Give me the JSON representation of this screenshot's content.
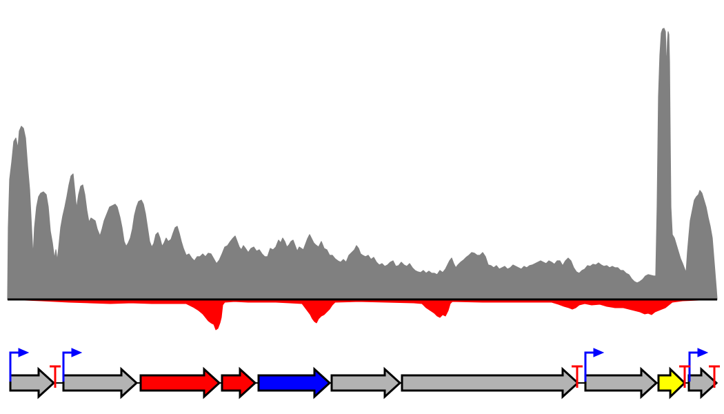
{
  "colors": {
    "background": "#ffffff",
    "forward_coverage": "#808080",
    "reverse_coverage": "#ff0000",
    "baseline": "#000000",
    "gene_outline": "#000000",
    "promoter": "#0000ff",
    "terminator": "#ff0000"
  },
  "coverage": {
    "forward_color_name": "gray",
    "reverse_color_name": "red",
    "forward_peak_level": 1.0,
    "reverse_peak_level": 0.11
  },
  "genes": [
    {
      "color": "#b3b3b3",
      "strand": "+",
      "index": 1
    },
    {
      "color": "#b3b3b3",
      "strand": "+",
      "index": 2
    },
    {
      "color": "#ff0000",
      "strand": "+",
      "index": 3
    },
    {
      "color": "#ff0000",
      "strand": "+",
      "index": 4
    },
    {
      "color": "#0000ff",
      "strand": "+",
      "index": 5
    },
    {
      "color": "#b3b3b3",
      "strand": "+",
      "index": 6
    },
    {
      "color": "#b3b3b3",
      "strand": "+",
      "index": 7
    },
    {
      "color": "#b3b3b3",
      "strand": "+",
      "index": 8
    },
    {
      "color": "#ffff00",
      "strand": "+",
      "index": 9
    },
    {
      "color": "#b3b3b3",
      "strand": "+",
      "index": 10
    }
  ],
  "promoters": [
    {
      "icon": "promoter-arrow-icon",
      "index": 1
    },
    {
      "icon": "promoter-arrow-icon",
      "index": 2
    },
    {
      "icon": "promoter-arrow-icon",
      "index": 3
    },
    {
      "icon": "promoter-arrow-icon",
      "index": 4
    }
  ],
  "terminators": [
    {
      "icon": "terminator-t-icon",
      "index": 1
    },
    {
      "icon": "terminator-t-icon",
      "index": 2
    },
    {
      "icon": "terminator-t-icon",
      "index": 3
    },
    {
      "icon": "terminator-t-icon",
      "index": 4
    }
  ]
}
